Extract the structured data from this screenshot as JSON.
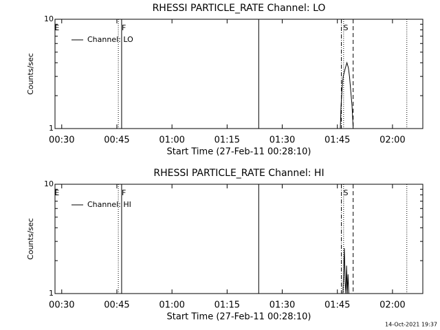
{
  "chart_data": [
    {
      "type": "line",
      "title": "RHESSI PARTICLE_RATE Channel: LO",
      "xlabel": "Start Time (27-Feb-11 00:28:10)",
      "ylabel": "Counts/sec",
      "log_y": true,
      "ylim": [
        1,
        10
      ],
      "yticks": [
        1,
        10
      ],
      "xlim": [
        28.17,
        128.25
      ],
      "xticks": [
        {
          "value": 30,
          "label": "00:30"
        },
        {
          "value": 45,
          "label": "00:45"
        },
        {
          "value": 60,
          "label": "01:00"
        },
        {
          "value": 75,
          "label": "01:15"
        },
        {
          "value": 90,
          "label": "01:30"
        },
        {
          "value": 105,
          "label": "01:45"
        },
        {
          "value": 120,
          "label": "02:00"
        }
      ],
      "series": [
        {
          "name": "Channel: LO",
          "color": "#000000",
          "x": [
            105.8,
            106.0,
            106.3,
            106.6,
            107.0,
            107.3,
            107.6,
            108.0,
            108.3,
            108.6,
            109.0,
            109.3
          ],
          "values": [
            1,
            1.6,
            2.4,
            3.0,
            3.4,
            3.7,
            4.0,
            3.6,
            3.0,
            2.3,
            1.6,
            1
          ]
        }
      ],
      "vlines": [
        {
          "x": 45.4,
          "style": "dotted"
        },
        {
          "x": 46.3,
          "style": "solid"
        },
        {
          "x": 83.6,
          "style": "solid"
        },
        {
          "x": 106.1,
          "style": "dashdot"
        },
        {
          "x": 106.7,
          "style": "dotted"
        },
        {
          "x": 109.3,
          "style": "dashed"
        },
        {
          "x": 123.9,
          "style": "dotted"
        }
      ],
      "annotations": [
        {
          "text": "E",
          "x": 28.7
        },
        {
          "text": "F",
          "x": 46.9
        },
        {
          "text": "S",
          "x": 107.3
        }
      ]
    },
    {
      "type": "line",
      "title": "RHESSI PARTICLE_RATE Channel: HI",
      "xlabel": "Start Time (27-Feb-11 00:28:10)",
      "ylabel": "Counts/sec",
      "log_y": true,
      "ylim": [
        1,
        10
      ],
      "yticks": [
        1,
        10
      ],
      "xlim": [
        28.17,
        128.25
      ],
      "xticks": [
        {
          "value": 30,
          "label": "00:30"
        },
        {
          "value": 45,
          "label": "00:45"
        },
        {
          "value": 60,
          "label": "01:00"
        },
        {
          "value": 75,
          "label": "01:15"
        },
        {
          "value": 90,
          "label": "01:30"
        },
        {
          "value": 105,
          "label": "01:45"
        },
        {
          "value": 120,
          "label": "02:00"
        }
      ],
      "series": [
        {
          "name": "Channel: HI",
          "color": "#000000",
          "x": [
            106.5,
            106.7,
            106.9,
            107.1,
            107.3,
            107.5,
            107.7,
            107.9,
            108.1
          ],
          "values": [
            1,
            1.5,
            2.6,
            1.3,
            1,
            1.8,
            1,
            1.5,
            1
          ]
        }
      ],
      "vlines": [
        {
          "x": 45.4,
          "style": "dotted"
        },
        {
          "x": 46.3,
          "style": "solid"
        },
        {
          "x": 83.6,
          "style": "solid"
        },
        {
          "x": 106.1,
          "style": "dashdot"
        },
        {
          "x": 106.7,
          "style": "dotted"
        },
        {
          "x": 109.3,
          "style": "dashed"
        },
        {
          "x": 123.9,
          "style": "dotted"
        }
      ],
      "annotations": [
        {
          "text": "E",
          "x": 28.7
        },
        {
          "text": "F",
          "x": 46.9
        },
        {
          "text": "S",
          "x": 107.3
        }
      ]
    }
  ],
  "footer": "14-Oct-2021 19:37"
}
